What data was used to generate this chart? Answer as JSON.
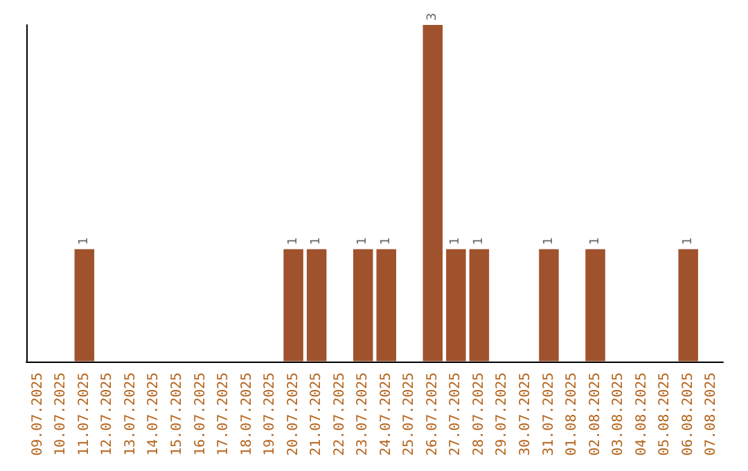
{
  "chart_data": {
    "type": "bar",
    "categories": [
      "09.07.2025",
      "10.07.2025",
      "11.07.2025",
      "12.07.2025",
      "13.07.2025",
      "14.07.2025",
      "15.07.2025",
      "16.07.2025",
      "17.07.2025",
      "18.07.2025",
      "19.07.2025",
      "20.07.2025",
      "21.07.2025",
      "22.07.2025",
      "23.07.2025",
      "24.07.2025",
      "25.07.2025",
      "26.07.2025",
      "27.07.2025",
      "28.07.2025",
      "29.07.2025",
      "30.07.2025",
      "31.07.2025",
      "01.08.2025",
      "02.08.2025",
      "03.08.2025",
      "04.08.2025",
      "05.08.2025",
      "06.08.2025",
      "07.08.2025"
    ],
    "values": [
      0,
      0,
      1,
      0,
      0,
      0,
      0,
      0,
      0,
      0,
      0,
      1,
      1,
      0,
      1,
      1,
      0,
      3,
      1,
      1,
      0,
      0,
      1,
      0,
      1,
      0,
      0,
      0,
      1,
      0
    ],
    "value_labels": [
      null,
      null,
      "1",
      null,
      null,
      null,
      null,
      null,
      null,
      null,
      null,
      "1",
      "1",
      null,
      "1",
      "1",
      null,
      "3",
      "1",
      "1",
      null,
      null,
      "1",
      null,
      "1",
      null,
      null,
      null,
      "1",
      null
    ],
    "color": "#a0522d",
    "tick_labels": "x",
    "grid": false
  }
}
